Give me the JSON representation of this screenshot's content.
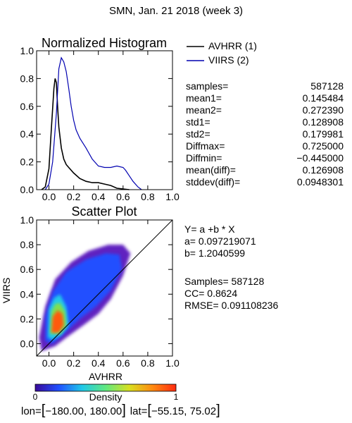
{
  "page_title": "SMN,  Jan. 21 2018 (week 3)",
  "chart_data": [
    {
      "type": "line",
      "title": "Normalized Histogram",
      "xlabel": "",
      "ylabel": "",
      "xlim": [
        -0.1,
        1.0
      ],
      "ylim": [
        0.0,
        1.0
      ],
      "x_ticks": [
        0.0,
        0.2,
        0.4,
        0.6,
        0.8,
        1.0
      ],
      "x_tick_labels": [
        "0.0",
        "0.2",
        "0.4",
        "0.6",
        "0.8",
        "1.0"
      ],
      "y_ticks": [
        0.0,
        0.2,
        0.4,
        0.6,
        0.8,
        1.0
      ],
      "y_tick_labels": [
        "0.0",
        "0.2",
        "0.4",
        "0.6",
        "0.8",
        "1.0"
      ],
      "legend": "top-right",
      "series": [
        {
          "name": "AVHRR (1)",
          "color": "#000000",
          "x": [
            -0.06,
            -0.03,
            0.0,
            0.02,
            0.04,
            0.05,
            0.06,
            0.07,
            0.08,
            0.1,
            0.12,
            0.14,
            0.16,
            0.2,
            0.25,
            0.3,
            0.35,
            0.4,
            0.45,
            0.5,
            0.55,
            0.6,
            0.65
          ],
          "y": [
            0.0,
            0.02,
            0.15,
            0.45,
            0.73,
            0.8,
            0.77,
            0.6,
            0.45,
            0.3,
            0.22,
            0.18,
            0.16,
            0.12,
            0.08,
            0.06,
            0.05,
            0.05,
            0.04,
            0.03,
            0.01,
            0.005,
            0.0
          ]
        },
        {
          "name": "VIIRS (2)",
          "color": "#0000b0",
          "x": [
            -0.03,
            0.0,
            0.03,
            0.06,
            0.08,
            0.1,
            0.12,
            0.14,
            0.16,
            0.18,
            0.2,
            0.22,
            0.25,
            0.3,
            0.35,
            0.4,
            0.45,
            0.5,
            0.55,
            0.6,
            0.62,
            0.65,
            0.68,
            0.72,
            0.75
          ],
          "y": [
            0.0,
            0.04,
            0.2,
            0.55,
            0.87,
            0.95,
            0.92,
            0.85,
            0.73,
            0.6,
            0.5,
            0.43,
            0.37,
            0.3,
            0.22,
            0.17,
            0.16,
            0.16,
            0.17,
            0.16,
            0.14,
            0.1,
            0.06,
            0.02,
            0.0
          ]
        }
      ]
    },
    {
      "type": "scatter",
      "title": "Scatter Plot",
      "xlabel": "AVHRR",
      "ylabel": "VIIRS",
      "xlim": [
        -0.1,
        1.0
      ],
      "ylim": [
        -0.1,
        1.0
      ],
      "x_ticks": [
        0.0,
        0.2,
        0.4,
        0.6,
        0.8,
        1.0
      ],
      "x_tick_labels": [
        "0.0",
        "0.2",
        "0.4",
        "0.6",
        "0.8",
        "1.0"
      ],
      "y_ticks": [
        0.0,
        0.2,
        0.4,
        0.6,
        0.8,
        1.0
      ],
      "y_tick_labels": [
        "0.0",
        "0.2",
        "0.4",
        "0.6",
        "0.8",
        "1.0"
      ],
      "one_to_one_line": true,
      "density_regions": [
        {
          "level": "low",
          "color": "#6020c0",
          "points": [
            [
              -0.06,
              -0.06
            ],
            [
              -0.08,
              0.05
            ],
            [
              -0.03,
              0.3
            ],
            [
              0.05,
              0.52
            ],
            [
              0.18,
              0.66
            ],
            [
              0.32,
              0.75
            ],
            [
              0.48,
              0.8
            ],
            [
              0.6,
              0.8
            ],
            [
              0.66,
              0.73
            ],
            [
              0.6,
              0.55
            ],
            [
              0.5,
              0.36
            ],
            [
              0.4,
              0.24
            ],
            [
              0.28,
              0.15
            ],
            [
              0.14,
              0.05
            ],
            [
              0.05,
              -0.02
            ]
          ]
        },
        {
          "level": "medium-low",
          "color": "#2050ff",
          "points": [
            [
              -0.03,
              0.02
            ],
            [
              -0.03,
              0.22
            ],
            [
              0.03,
              0.42
            ],
            [
              0.14,
              0.58
            ],
            [
              0.3,
              0.68
            ],
            [
              0.46,
              0.73
            ],
            [
              0.57,
              0.72
            ],
            [
              0.59,
              0.6
            ],
            [
              0.5,
              0.43
            ],
            [
              0.38,
              0.3
            ],
            [
              0.25,
              0.2
            ],
            [
              0.12,
              0.08
            ],
            [
              0.03,
              0.0
            ]
          ]
        },
        {
          "level": "medium",
          "color": "#20c8e8",
          "points": [
            [
              -0.01,
              0.05
            ],
            [
              0.0,
              0.28
            ],
            [
              0.04,
              0.37
            ],
            [
              0.09,
              0.4
            ],
            [
              0.14,
              0.3
            ],
            [
              0.16,
              0.15
            ],
            [
              0.1,
              0.07
            ],
            [
              0.03,
              0.03
            ]
          ]
        },
        {
          "level": "medium-high",
          "color": "#80e050",
          "points": [
            [
              0.01,
              0.08
            ],
            [
              0.02,
              0.26
            ],
            [
              0.05,
              0.32
            ],
            [
              0.09,
              0.33
            ],
            [
              0.13,
              0.26
            ],
            [
              0.14,
              0.14
            ],
            [
              0.09,
              0.08
            ]
          ]
        },
        {
          "level": "high",
          "color": "#ff5a10",
          "points": [
            [
              0.02,
              0.09
            ],
            [
              0.03,
              0.22
            ],
            [
              0.07,
              0.27
            ],
            [
              0.11,
              0.24
            ],
            [
              0.12,
              0.15
            ],
            [
              0.08,
              0.09
            ]
          ]
        }
      ],
      "colorbar": {
        "label": "Density",
        "min_label": "0",
        "max_label": "1",
        "stops": [
          "#3a0a9a",
          "#2050ff",
          "#20c8e8",
          "#60e880",
          "#d8e020",
          "#ff8a10",
          "#ff2a10"
        ]
      }
    }
  ],
  "histogram_stats": [
    {
      "label": "samples=",
      "value": "587128"
    },
    {
      "label": "mean1=",
      "value": "0.145484"
    },
    {
      "label": "mean2=",
      "value": "0.272390"
    },
    {
      "label": "std1=",
      "value": "0.128908"
    },
    {
      "label": "std2=",
      "value": "0.179981"
    },
    {
      "label": "Diffmax=",
      "value": "0.725000"
    },
    {
      "label": "Diffmin=",
      "value": "−0.445000"
    },
    {
      "label": "mean(diff)=",
      "value": "0.126908"
    },
    {
      "label": "stddev(diff)=",
      "value": "0.0948301"
    }
  ],
  "regression_text": {
    "equation": "Y= a +b * X",
    "a": "a= 0.097219071",
    "b": "b= 1.2040599",
    "samples": "Samples= 587128",
    "cc": "CC=  0.8624",
    "rmse": "RMSE= 0.091108236"
  },
  "region_text": {
    "lon_prefix": "lon=",
    "lon_range": "−180.00, 180.00",
    "lat_prefix": "lat=",
    "lat_range": "−55.15, 75.02"
  }
}
